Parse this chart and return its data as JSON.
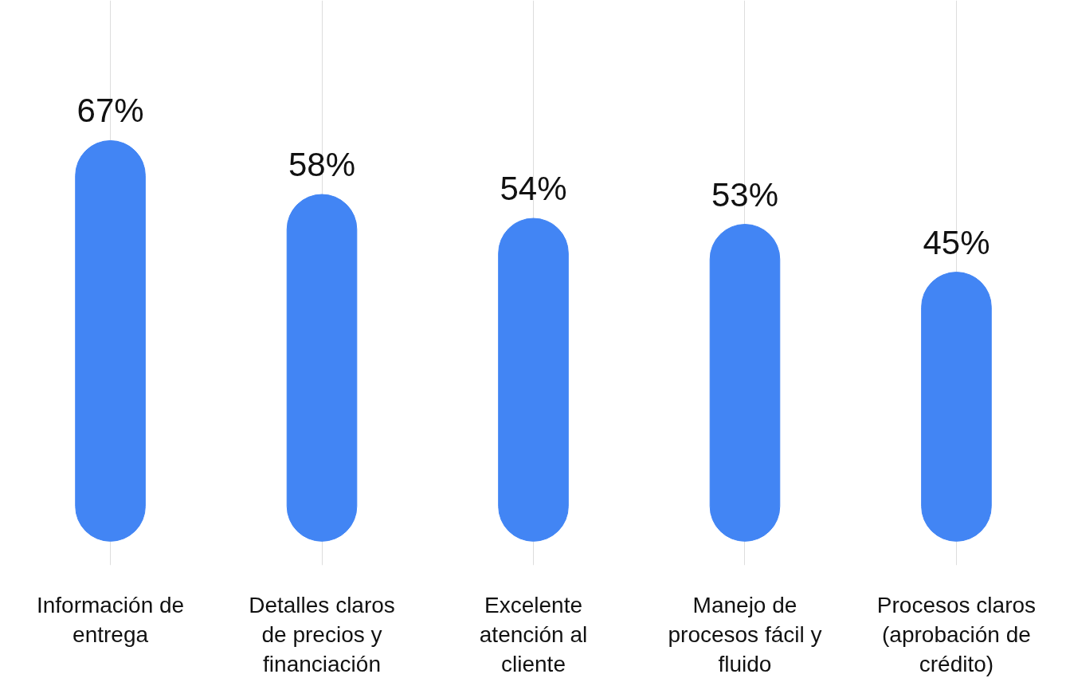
{
  "chart_data": {
    "type": "bar",
    "categories": [
      "Información de entrega",
      "Detalles claros de precios y financiación",
      "Excelente atención al cliente",
      "Manejo de procesos fácil y fluido",
      "Procesos claros (aprobación de crédito)"
    ],
    "values": [
      67,
      58,
      54,
      53,
      45
    ],
    "value_labels": [
      "67%",
      "58%",
      "54%",
      "53%",
      "45%"
    ],
    "color": "#4285f4",
    "tick_labels": "x",
    "grid": "x"
  }
}
